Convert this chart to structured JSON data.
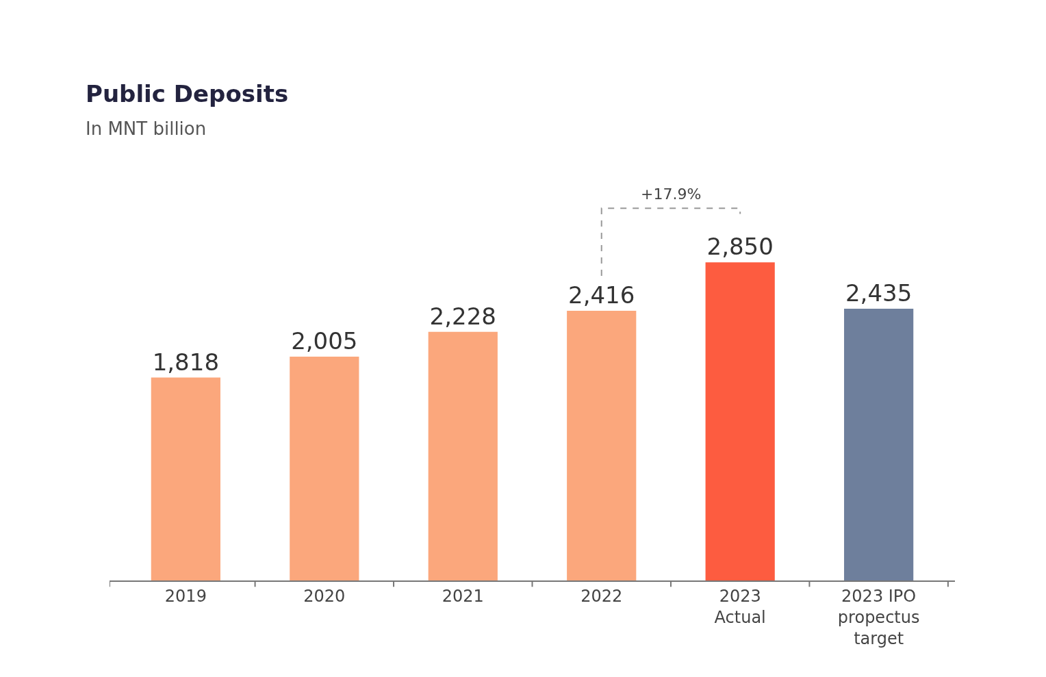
{
  "chart_data": {
    "type": "bar",
    "title": "Public Deposits",
    "subtitle": "In MNT billion",
    "categories": [
      "2019",
      "2020",
      "2021",
      "2022",
      "2023 Actual",
      "2023 IPO propectus target"
    ],
    "values": [
      1818,
      2005,
      2228,
      2416,
      2850,
      2435
    ],
    "colors": [
      "#fba77c",
      "#fba77c",
      "#fba77c",
      "#fba77c",
      "#fd5c40",
      "#6e7f9c"
    ],
    "value_labels": [
      "1,818",
      "2,005",
      "2,228",
      "2,416",
      "2,850",
      "2,435"
    ],
    "annotations": [
      "+17.9%"
    ],
    "legend": false
  }
}
